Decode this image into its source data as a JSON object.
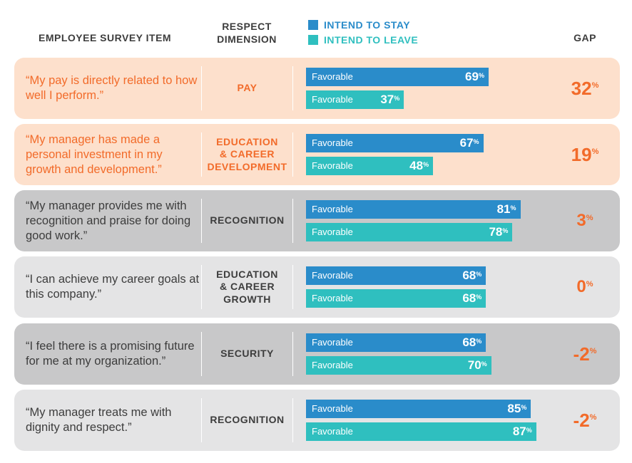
{
  "header": {
    "survey_item": "EMPLOYEE SURVEY ITEM",
    "dimension_line1": "RESPECT",
    "dimension_line2": "DIMENSION",
    "gap": "GAP"
  },
  "colors": {
    "stay": "#2a8cca",
    "leave": "#2fbfbf",
    "accent": "#f26b2a",
    "peach_bg": "#fde0cc",
    "dark_gray_bg": "#c8c8c9",
    "light_gray_bg": "#e4e4e5",
    "dark_text": "#3d3d3d"
  },
  "bar_label": "Favorable",
  "percent_sign": "%",
  "chart_data": {
    "type": "bar",
    "orientation": "horizontal",
    "xlim": [
      0,
      100
    ],
    "legend": "top",
    "categories": [
      "“My pay is directly related to how well I perform.”",
      "“My manager has made a personal investment in my growth and development.”",
      "“My manager provides me with recognition and praise for doing good work.”",
      "“I can achieve my career goals at this company.”",
      "“I feel there is a promising future for me at my organization.”",
      "“My manager treats me with dignity and respect.”"
    ],
    "dimensions": [
      [
        "PAY"
      ],
      [
        "EDUCATION",
        "& CAREER",
        "DEVELOPMENT"
      ],
      [
        "RECOGNITION"
      ],
      [
        "EDUCATION",
        "& CAREER",
        "GROWTH"
      ],
      [
        "SECURITY"
      ],
      [
        "RECOGNITION"
      ]
    ],
    "series": [
      {
        "name": "INTEND TO STAY",
        "values": [
          69,
          67,
          81,
          68,
          68,
          85
        ]
      },
      {
        "name": "INTEND TO LEAVE",
        "values": [
          37,
          48,
          78,
          68,
          70,
          87
        ]
      }
    ],
    "gap": [
      "32",
      "19",
      "3",
      "0",
      "-2",
      "-2"
    ],
    "row_style": [
      "peach",
      "peach",
      "dark",
      "light",
      "dark",
      "light"
    ]
  }
}
